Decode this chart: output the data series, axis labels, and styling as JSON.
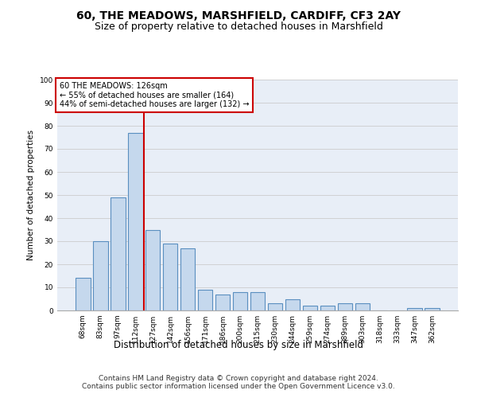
{
  "title": "60, THE MEADOWS, MARSHFIELD, CARDIFF, CF3 2AY",
  "subtitle": "Size of property relative to detached houses in Marshfield",
  "xlabel": "Distribution of detached houses by size in Marshfield",
  "ylabel": "Number of detached properties",
  "categories": [
    "68sqm",
    "83sqm",
    "97sqm",
    "112sqm",
    "127sqm",
    "142sqm",
    "156sqm",
    "171sqm",
    "186sqm",
    "200sqm",
    "215sqm",
    "230sqm",
    "244sqm",
    "259sqm",
    "274sqm",
    "289sqm",
    "303sqm",
    "318sqm",
    "333sqm",
    "347sqm",
    "362sqm"
  ],
  "values": [
    14,
    30,
    49,
    77,
    35,
    29,
    27,
    9,
    7,
    8,
    8,
    3,
    5,
    2,
    2,
    3,
    3,
    0,
    0,
    1,
    1
  ],
  "bar_color": "#c5d8ed",
  "bar_edge_color": "#5a8fc0",
  "bar_edge_width": 0.8,
  "vline_x_index": 4,
  "vline_color": "#cc0000",
  "annotation_line1": "60 THE MEADOWS: 126sqm",
  "annotation_line2": "← 55% of detached houses are smaller (164)",
  "annotation_line3": "44% of semi-detached houses are larger (132) →",
  "annotation_box_color": "white",
  "annotation_box_edge_color": "#cc0000",
  "ylim": [
    0,
    100
  ],
  "yticks": [
    0,
    10,
    20,
    30,
    40,
    50,
    60,
    70,
    80,
    90,
    100
  ],
  "grid_color": "#cccccc",
  "bg_color": "#e8eef7",
  "footer1": "Contains HM Land Registry data © Crown copyright and database right 2024.",
  "footer2": "Contains public sector information licensed under the Open Government Licence v3.0.",
  "title_fontsize": 10,
  "subtitle_fontsize": 9,
  "xlabel_fontsize": 8.5,
  "ylabel_fontsize": 7.5,
  "tick_fontsize": 6.5,
  "annotation_fontsize": 7,
  "footer_fontsize": 6.5
}
